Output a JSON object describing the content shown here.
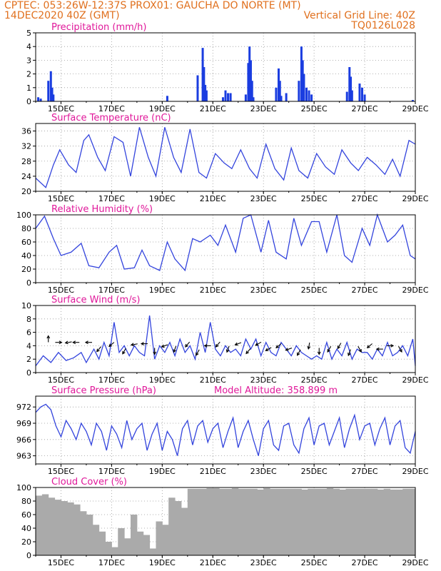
{
  "header": {
    "line1_left": "CPTEC:   053:26W-12:37S   PROX01: GAUCHA DO NORTE (MT)",
    "line2_left": "14DEC2020 40Z (GMT)",
    "line2_right": "Vertical Grid Line: 40Z",
    "line3_right": "TQ0126L028"
  },
  "x_axis": {
    "ticks": [
      "15DEC",
      "17DEC",
      "19DEC",
      "21DEC",
      "23DEC",
      "25DEC",
      "27DEC",
      "29DEC"
    ],
    "start_day": 14,
    "end_day": 29
  },
  "colors": {
    "line": "#3344dd",
    "bars": "#1a3de0",
    "cloud": "#aaaaaa",
    "titles": "#e0189a",
    "header": "#e0701e"
  },
  "chart_data": [
    {
      "id": "precipitation",
      "type": "bar",
      "title": "Precipitation (mm/h)",
      "ylim": [
        0,
        5
      ],
      "yticks": [
        0,
        1,
        2,
        3,
        4,
        5
      ],
      "grid": true,
      "x": [
        14.1,
        14.2,
        14.5,
        14.6,
        14.65,
        14.7,
        19.2,
        20.4,
        20.6,
        20.65,
        20.7,
        20.75,
        21.4,
        21.5,
        21.6,
        21.7,
        22.3,
        22.4,
        22.45,
        22.5,
        22.55,
        22.6,
        23.5,
        23.6,
        23.65,
        23.7,
        23.9,
        24.4,
        24.5,
        24.55,
        24.6,
        24.7,
        24.8,
        24.9,
        26.3,
        26.4,
        26.45,
        26.5,
        26.8,
        26.9,
        27.0,
        28.9
      ],
      "values": [
        0.3,
        0.2,
        1.5,
        2.2,
        1.0,
        0.5,
        0.4,
        1.9,
        3.9,
        2.5,
        1.2,
        0.8,
        0.3,
        0.8,
        0.6,
        0.6,
        0.5,
        2.8,
        4.0,
        3.0,
        1.5,
        0.3,
        1.0,
        2.4,
        1.5,
        0.4,
        0.6,
        1.5,
        4.0,
        3.0,
        2.0,
        1.0,
        0.8,
        0.5,
        0.7,
        2.5,
        1.8,
        0.8,
        1.3,
        1.0,
        0.5,
        0.1
      ]
    },
    {
      "id": "temperature",
      "type": "line",
      "title": "Surface Temperature (nC)",
      "ylim": [
        20,
        38
      ],
      "yticks": [
        20,
        24,
        28,
        32,
        36
      ],
      "grid": true,
      "x": [
        14.0,
        14.4,
        14.7,
        14.95,
        15.3,
        15.6,
        15.9,
        16.1,
        16.45,
        16.75,
        17.1,
        17.45,
        17.75,
        18.1,
        18.45,
        18.75,
        19.1,
        19.45,
        19.75,
        20.1,
        20.45,
        20.75,
        21.1,
        21.45,
        21.75,
        22.1,
        22.45,
        22.75,
        23.1,
        23.45,
        23.8,
        24.1,
        24.4,
        24.75,
        25.1,
        25.45,
        25.8,
        26.1,
        26.45,
        26.75,
        27.1,
        27.45,
        27.8,
        28.1,
        28.4,
        28.75,
        29.0
      ],
      "values": [
        23.5,
        21.0,
        27.0,
        31.0,
        27.0,
        25.0,
        33.5,
        35.0,
        29.0,
        25.5,
        34.5,
        33.0,
        24.0,
        37.0,
        29.0,
        24.0,
        37.0,
        29.0,
        25.0,
        36.5,
        25.0,
        23.5,
        30.0,
        27.5,
        26.0,
        31.0,
        26.0,
        23.5,
        32.5,
        26.0,
        23.0,
        31.5,
        25.5,
        23.5,
        30.0,
        26.5,
        24.5,
        31.0,
        27.5,
        25.5,
        29.0,
        27.0,
        24.5,
        28.5,
        24.0,
        33.5,
        32.5
      ]
    },
    {
      "id": "humidity",
      "type": "line",
      "title": "Relative Humidity (%)",
      "ylim": [
        0,
        100
      ],
      "yticks": [
        0,
        20,
        40,
        60,
        80,
        100
      ],
      "grid": true,
      "x": [
        14.0,
        14.35,
        14.7,
        15.0,
        15.4,
        15.8,
        16.1,
        16.5,
        16.9,
        17.2,
        17.5,
        17.9,
        18.2,
        18.5,
        18.9,
        19.2,
        19.5,
        19.9,
        20.2,
        20.5,
        20.9,
        21.2,
        21.5,
        21.9,
        22.2,
        22.5,
        22.9,
        23.2,
        23.5,
        23.9,
        24.2,
        24.5,
        24.9,
        25.2,
        25.5,
        25.9,
        26.2,
        26.5,
        26.9,
        27.2,
        27.5,
        27.9,
        28.2,
        28.5,
        28.8,
        29.0
      ],
      "values": [
        80,
        98,
        65,
        40,
        45,
        58,
        25,
        22,
        45,
        55,
        20,
        22,
        48,
        25,
        18,
        60,
        35,
        18,
        65,
        60,
        70,
        55,
        85,
        45,
        95,
        100,
        45,
        92,
        45,
        35,
        95,
        55,
        90,
        90,
        45,
        100,
        40,
        30,
        80,
        55,
        100,
        60,
        70,
        85,
        40,
        35
      ]
    },
    {
      "id": "wind",
      "type": "line",
      "title": "Surface Wind (m/s)",
      "ylim": [
        0,
        10
      ],
      "yticks": [
        0,
        2,
        4,
        6,
        8,
        10
      ],
      "grid": true,
      "x": [
        14.0,
        14.3,
        14.6,
        14.9,
        15.2,
        15.5,
        15.8,
        16.0,
        16.3,
        16.5,
        16.7,
        16.9,
        17.1,
        17.3,
        17.5,
        17.7,
        17.9,
        18.1,
        18.3,
        18.5,
        18.7,
        18.9,
        19.1,
        19.3,
        19.5,
        19.7,
        19.9,
        20.1,
        20.3,
        20.5,
        20.7,
        20.9,
        21.1,
        21.3,
        21.5,
        21.7,
        21.9,
        22.1,
        22.3,
        22.5,
        22.7,
        22.9,
        23.1,
        23.3,
        23.5,
        23.7,
        23.9,
        24.1,
        24.3,
        24.5,
        24.7,
        24.9,
        25.1,
        25.3,
        25.5,
        25.7,
        25.9,
        26.1,
        26.3,
        26.5,
        26.7,
        26.9,
        27.1,
        27.3,
        27.5,
        27.7,
        27.9,
        28.1,
        28.3,
        28.5,
        28.7,
        28.9,
        29.0
      ],
      "values": [
        1.0,
        2.5,
        1.5,
        3.0,
        1.8,
        2.2,
        3.0,
        1.5,
        3.5,
        2.0,
        4.5,
        2.5,
        7.5,
        3.0,
        4.0,
        2.5,
        4.0,
        3.0,
        2.5,
        8.5,
        2.0,
        4.0,
        3.0,
        4.5,
        2.5,
        5.0,
        3.0,
        4.0,
        2.0,
        6.0,
        3.0,
        7.5,
        3.5,
        2.5,
        4.0,
        3.0,
        3.5,
        2.5,
        5.0,
        3.5,
        5.0,
        2.5,
        4.5,
        3.0,
        2.5,
        4.5,
        3.5,
        2.5,
        4.0,
        3.0,
        2.5,
        2.0,
        2.5,
        2.0,
        4.5,
        2.0,
        3.5,
        2.5,
        4.5,
        2.0,
        3.5,
        3.0,
        3.0,
        2.0,
        3.5,
        2.5,
        4.5,
        2.5,
        3.0,
        4.0,
        2.5,
        5.0,
        1.0
      ]
    },
    {
      "id": "pressure",
      "type": "line",
      "title": "Surface Pressure (hPa)",
      "extra_label": "Model Altitude: 358.899 m",
      "ylim": [
        961.5,
        974
      ],
      "yticks": [
        963,
        966,
        969,
        972
      ],
      "grid": true,
      "x": [
        14.0,
        14.2,
        14.4,
        14.6,
        14.8,
        15.0,
        15.2,
        15.4,
        15.6,
        15.8,
        16.0,
        16.2,
        16.4,
        16.6,
        16.8,
        17.0,
        17.2,
        17.4,
        17.6,
        17.8,
        18.0,
        18.2,
        18.4,
        18.6,
        18.8,
        19.0,
        19.2,
        19.4,
        19.6,
        19.8,
        20.0,
        20.2,
        20.4,
        20.6,
        20.8,
        21.0,
        21.2,
        21.4,
        21.6,
        21.8,
        22.0,
        22.2,
        22.4,
        22.6,
        22.8,
        23.0,
        23.2,
        23.4,
        23.6,
        23.8,
        24.0,
        24.2,
        24.4,
        24.6,
        24.8,
        25.0,
        25.2,
        25.4,
        25.6,
        25.8,
        26.0,
        26.2,
        26.4,
        26.6,
        26.8,
        27.0,
        27.2,
        27.4,
        27.6,
        27.8,
        28.0,
        28.2,
        28.4,
        28.6,
        28.8,
        29.0
      ],
      "values": [
        971.0,
        972.0,
        972.5,
        971.5,
        968.5,
        966.5,
        969.5,
        968.0,
        966.0,
        969.0,
        967.5,
        965.0,
        969.0,
        967.5,
        964.0,
        968.5,
        967.0,
        964.5,
        969.5,
        966.0,
        968.0,
        969.0,
        964.0,
        967.0,
        969.0,
        964.0,
        967.5,
        966.0,
        963.0,
        968.0,
        969.5,
        965.0,
        968.5,
        969.5,
        965.5,
        968.0,
        969.0,
        964.5,
        967.5,
        970.0,
        964.5,
        967.5,
        969.5,
        966.0,
        963.0,
        968.0,
        969.5,
        965.0,
        964.0,
        968.5,
        969.0,
        965.0,
        963.5,
        968.0,
        970.0,
        965.0,
        968.5,
        969.0,
        965.0,
        967.5,
        970.0,
        964.5,
        968.0,
        970.5,
        966.0,
        968.5,
        969.0,
        965.0,
        968.0,
        970.0,
        965.0,
        968.5,
        969.5,
        964.5,
        963.5,
        967.5
      ]
    },
    {
      "id": "cloud",
      "type": "bar",
      "title": "Cloud Cover (%)",
      "ylim": [
        0,
        100
      ],
      "yticks": [
        0,
        20,
        40,
        60,
        80,
        100
      ],
      "grid": true,
      "x": [
        14.0,
        14.25,
        14.5,
        14.75,
        15.0,
        15.25,
        15.5,
        15.75,
        16.0,
        16.25,
        16.5,
        16.75,
        17.0,
        17.25,
        17.5,
        17.75,
        18.0,
        18.25,
        18.5,
        18.75,
        19.0,
        19.25,
        19.5,
        19.75,
        20.0,
        20.25,
        20.5,
        20.75,
        21.0,
        21.25,
        21.5,
        21.75,
        22.0,
        22.25,
        22.5,
        22.75,
        23.0,
        23.25,
        23.5,
        23.75,
        24.0,
        24.25,
        24.5,
        24.75,
        25.0,
        25.25,
        25.5,
        25.75,
        26.0,
        26.25,
        26.5,
        26.75,
        27.0,
        27.25,
        27.5,
        27.75,
        28.0,
        28.25,
        28.5,
        28.75
      ],
      "values": [
        88,
        90,
        85,
        82,
        80,
        78,
        75,
        65,
        60,
        45,
        35,
        20,
        12,
        40,
        25,
        60,
        35,
        30,
        10,
        50,
        45,
        85,
        80,
        70,
        98,
        98,
        98,
        99,
        99,
        98,
        98,
        99,
        98,
        98,
        98,
        97,
        99,
        98,
        98,
        98,
        98,
        98,
        97,
        98,
        98,
        98,
        99,
        98,
        97,
        98,
        98,
        98,
        98,
        98,
        97,
        98,
        97,
        97,
        98,
        98
      ]
    }
  ],
  "wind_vectors": {
    "x": [
      14.5,
      14.9,
      15.3,
      15.6,
      16.1,
      16.5,
      17.0,
      17.5,
      17.9,
      18.3,
      18.7,
      19.1,
      19.5,
      20.0,
      20.4,
      20.8,
      21.2,
      21.6,
      22.0,
      22.4,
      22.8,
      23.2,
      23.6,
      24.0,
      24.4,
      24.8,
      25.2,
      25.6,
      26.0,
      26.4,
      26.8,
      27.2,
      27.6,
      28.0,
      28.4
    ],
    "y": [
      5.0,
      4.5,
      4.5,
      4.5,
      4.5,
      3.5,
      4.2,
      3.2,
      4.2,
      4.3,
      3.2,
      4.0,
      3.5,
      4.2,
      3.0,
      4.0,
      4.2,
      3.5,
      4.3,
      3.2,
      4.3,
      3.5,
      4.0,
      3.5,
      3.0,
      4.0,
      3.2,
      3.5,
      4.0,
      3.0,
      3.5,
      4.0,
      3.5,
      4.0,
      3.5
    ],
    "dir_deg": [
      90,
      0,
      190,
      180,
      180,
      230,
      220,
      240,
      190,
      180,
      270,
      200,
      250,
      230,
      240,
      180,
      230,
      250,
      200,
      230,
      210,
      210,
      220,
      200,
      240,
      260,
      270,
      240,
      240,
      250,
      300,
      220,
      180,
      0,
      300
    ]
  }
}
